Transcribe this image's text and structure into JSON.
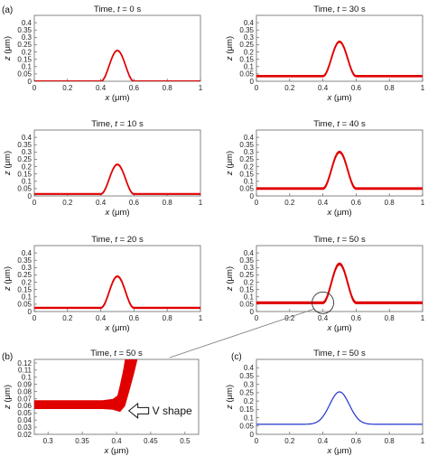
{
  "figure": {
    "panel_labels": [
      "(a)",
      "(b)",
      "(c)"
    ],
    "colors": {
      "simulation": "#e00000",
      "analytic": "#2233cc",
      "axis": "#555555"
    }
  },
  "chart_data": [
    {
      "id": "a-t0",
      "type": "line",
      "panel": "(a)",
      "title_prefix": "Time, ",
      "title_var": "t",
      "title_suffix": " = 0 s",
      "xlabel_var": "x",
      "xlabel_unit": " (μm)",
      "ylabel_var": "z",
      "ylabel_unit": " (μm)",
      "xlim": [
        0,
        1
      ],
      "ylim": [
        0,
        0.45
      ],
      "xticks": [
        0,
        0.2,
        0.4,
        0.6,
        0.8,
        1
      ],
      "yticks": [
        0,
        0.05,
        0.1,
        0.15,
        0.2,
        0.25,
        0.3,
        0.35,
        0.4
      ],
      "series": [
        {
          "base": 0.0,
          "amp": 0.21,
          "peak_x": 0.5,
          "hw_left": 0.1,
          "hw_right": 0.1,
          "x_range": [
            0,
            1
          ],
          "color": "#e00000",
          "band": 0.002
        }
      ]
    },
    {
      "id": "a-t10",
      "type": "line",
      "title_prefix": "Time, ",
      "title_var": "t",
      "title_suffix": " = 10 s",
      "xlabel_var": "x",
      "xlabel_unit": " (μm)",
      "ylabel_var": "z",
      "ylabel_unit": " (μm)",
      "xlim": [
        0,
        1
      ],
      "ylim": [
        0,
        0.45
      ],
      "xticks": [
        0,
        0.2,
        0.4,
        0.6,
        0.8,
        1
      ],
      "yticks": [
        0,
        0.05,
        0.1,
        0.15,
        0.2,
        0.25,
        0.3,
        0.35,
        0.4
      ],
      "series": [
        {
          "base": 0.013,
          "amp": 0.202,
          "peak_x": 0.5,
          "hw_left": 0.1,
          "hw_right": 0.1,
          "x_range": [
            0,
            1
          ],
          "color": "#e00000",
          "band": 0.003
        }
      ]
    },
    {
      "id": "a-t20",
      "type": "line",
      "title_prefix": "Time, ",
      "title_var": "t",
      "title_suffix": " = 20 s",
      "xlabel_var": "x",
      "xlabel_unit": " (μm)",
      "ylabel_var": "z",
      "ylabel_unit": " (μm)",
      "xlim": [
        0,
        1
      ],
      "ylim": [
        0,
        0.45
      ],
      "xticks": [
        0,
        0.2,
        0.4,
        0.6,
        0.8,
        1
      ],
      "yticks": [
        0,
        0.05,
        0.1,
        0.15,
        0.2,
        0.25,
        0.3,
        0.35,
        0.4
      ],
      "series": [
        {
          "base": 0.025,
          "amp": 0.215,
          "peak_x": 0.5,
          "hw_left": 0.1,
          "hw_right": 0.1,
          "x_range": [
            0,
            1
          ],
          "color": "#e00000",
          "band": 0.004
        }
      ]
    },
    {
      "id": "a-t30",
      "type": "line",
      "title_prefix": "Time, ",
      "title_var": "t",
      "title_suffix": " = 30 s",
      "xlabel_var": "x",
      "xlabel_unit": " (μm)",
      "ylabel_var": "z",
      "ylabel_unit": " (μm)",
      "xlim": [
        0,
        1
      ],
      "ylim": [
        0,
        0.45
      ],
      "xticks": [
        0,
        0.2,
        0.4,
        0.6,
        0.8,
        1
      ],
      "yticks": [
        0,
        0.05,
        0.1,
        0.15,
        0.2,
        0.25,
        0.3,
        0.35,
        0.4
      ],
      "series": [
        {
          "base": 0.035,
          "amp": 0.235,
          "peak_x": 0.5,
          "hw_left": 0.1,
          "hw_right": 0.1,
          "x_range": [
            0,
            1
          ],
          "color": "#e00000",
          "band": 0.006
        }
      ]
    },
    {
      "id": "a-t40",
      "type": "line",
      "title_prefix": "Time, ",
      "title_var": "t",
      "title_suffix": " = 40 s",
      "xlabel_var": "x",
      "xlabel_unit": " (μm)",
      "ylabel_var": "z",
      "ylabel_unit": " (μm)",
      "xlim": [
        0,
        1
      ],
      "ylim": [
        0,
        0.45
      ],
      "xticks": [
        0,
        0.2,
        0.4,
        0.6,
        0.8,
        1
      ],
      "yticks": [
        0,
        0.05,
        0.1,
        0.15,
        0.2,
        0.25,
        0.3,
        0.35,
        0.4
      ],
      "series": [
        {
          "base": 0.05,
          "amp": 0.25,
          "peak_x": 0.5,
          "hw_left": 0.1,
          "hw_right": 0.1,
          "x_range": [
            0,
            1
          ],
          "color": "#e00000",
          "band": 0.008
        }
      ]
    },
    {
      "id": "a-t50",
      "type": "line",
      "title_prefix": "Time, ",
      "title_var": "t",
      "title_suffix": " = 50 s",
      "xlabel_var": "x",
      "xlabel_unit": " (μm)",
      "ylabel_var": "z",
      "ylabel_unit": " (μm)",
      "xlim": [
        0,
        1
      ],
      "ylim": [
        0,
        0.45
      ],
      "xticks": [
        0,
        0.2,
        0.4,
        0.6,
        0.8,
        1
      ],
      "yticks": [
        0,
        0.05,
        0.1,
        0.15,
        0.2,
        0.25,
        0.3,
        0.35,
        0.4
      ],
      "series": [
        {
          "base": 0.06,
          "amp": 0.265,
          "peak_x": 0.5,
          "hw_left": 0.1,
          "hw_right": 0.1,
          "x_range": [
            0,
            1
          ],
          "color": "#e00000",
          "band": 0.01
        }
      ]
    },
    {
      "id": "b-zoom",
      "type": "area",
      "panel": "(b)",
      "title_prefix": "Time, ",
      "title_var": "t",
      "title_suffix": " = 50 s",
      "xlabel_var": "x",
      "xlabel_unit": " (μm)",
      "ylabel_var": "z",
      "ylabel_unit": " (μm)",
      "xlim": [
        0.28,
        0.52
      ],
      "ylim": [
        0.02,
        0.125
      ],
      "xticks": [
        0.3,
        0.35,
        0.4,
        0.45,
        0.5
      ],
      "yticks": [
        0.02,
        0.03,
        0.04,
        0.05,
        0.06,
        0.07,
        0.08,
        0.09,
        0.1,
        0.11,
        0.12
      ],
      "annotation": "V shape",
      "band_upper": [
        [
          0.28,
          0.067
        ],
        [
          0.38,
          0.067
        ],
        [
          0.395,
          0.069
        ],
        [
          0.402,
          0.074
        ],
        [
          0.405,
          0.086
        ],
        [
          0.41,
          0.108
        ],
        [
          0.413,
          0.125
        ]
      ],
      "band_lower": [
        [
          0.28,
          0.056
        ],
        [
          0.38,
          0.056
        ],
        [
          0.395,
          0.055
        ],
        [
          0.405,
          0.052
        ],
        [
          0.412,
          0.06
        ],
        [
          0.418,
          0.08
        ],
        [
          0.425,
          0.105
        ],
        [
          0.43,
          0.125
        ]
      ],
      "color": "#e00000"
    },
    {
      "id": "c-analytic",
      "type": "line",
      "panel": "(c)",
      "title_prefix": "Time, ",
      "title_var": "t",
      "title_suffix": " = 50 s",
      "xlabel_var": "x",
      "xlabel_unit": " (μm)",
      "ylabel_var": "z",
      "ylabel_unit": " (μm)",
      "xlim": [
        0,
        1
      ],
      "ylim": [
        0,
        0.45
      ],
      "xticks": [
        0,
        0.2,
        0.4,
        0.6,
        0.8,
        1
      ],
      "yticks": [
        0,
        0.05,
        0.1,
        0.15,
        0.2,
        0.25,
        0.3,
        0.35,
        0.4
      ],
      "series": [
        {
          "base": 0.06,
          "amp": 0.195,
          "peak_x": 0.5,
          "hw_left": 0.13,
          "hw_right": 0.13,
          "x_range": [
            0,
            1
          ],
          "color": "#2233cc",
          "band": 0,
          "smooth": true
        }
      ]
    }
  ]
}
